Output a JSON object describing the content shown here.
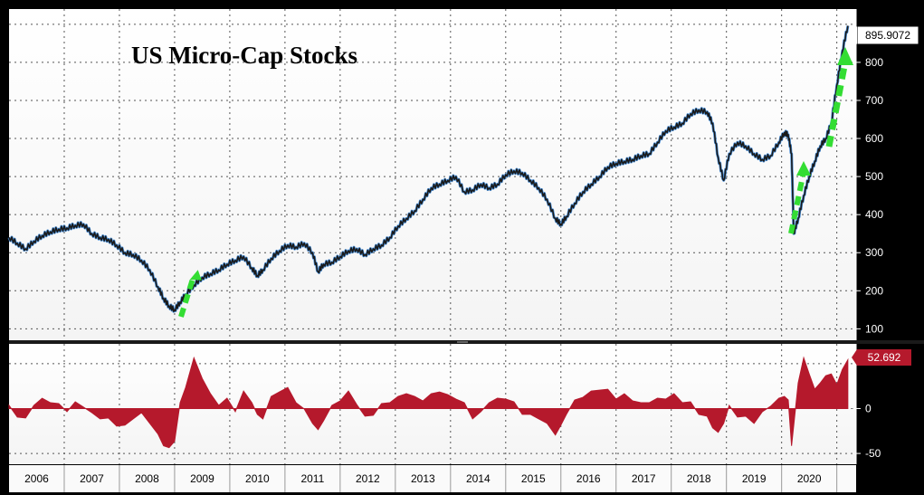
{
  "chart_data": [
    {
      "type": "line",
      "title": "US Micro-Cap Stocks",
      "ylim": [
        70,
        940
      ],
      "xlim": [
        2006.0,
        2021.35
      ],
      "yticks": [
        100,
        200,
        300,
        400,
        500,
        600,
        700,
        800
      ],
      "last_value_label": "895.9072",
      "grid": true,
      "series": [
        {
          "color": "#1a1a1a",
          "highlight_color": "#4a90d9",
          "x": [
            2006.0,
            2006.15,
            2006.3,
            2006.45,
            2006.6,
            2006.75,
            2006.9,
            2007.05,
            2007.2,
            2007.35,
            2007.5,
            2007.65,
            2007.8,
            2007.95,
            2008.1,
            2008.25,
            2008.4,
            2008.55,
            2008.7,
            2008.8,
            2008.9,
            2009.0,
            2009.1,
            2009.2,
            2009.35,
            2009.5,
            2009.65,
            2009.8,
            2009.95,
            2010.1,
            2010.25,
            2010.4,
            2010.5,
            2010.6,
            2010.75,
            2010.9,
            2011.05,
            2011.2,
            2011.35,
            2011.5,
            2011.6,
            2011.7,
            2011.85,
            2012.0,
            2012.15,
            2012.3,
            2012.45,
            2012.6,
            2012.75,
            2012.9,
            2013.05,
            2013.2,
            2013.35,
            2013.5,
            2013.65,
            2013.8,
            2013.95,
            2014.1,
            2014.25,
            2014.4,
            2014.55,
            2014.7,
            2014.85,
            2015.0,
            2015.15,
            2015.3,
            2015.45,
            2015.6,
            2015.75,
            2015.9,
            2016.0,
            2016.1,
            2016.25,
            2016.4,
            2016.55,
            2016.7,
            2016.85,
            2017.0,
            2017.15,
            2017.3,
            2017.45,
            2017.6,
            2017.75,
            2017.9,
            2018.05,
            2018.2,
            2018.35,
            2018.5,
            2018.65,
            2018.75,
            2018.85,
            2018.95,
            2019.05,
            2019.2,
            2019.35,
            2019.5,
            2019.65,
            2019.8,
            2019.95,
            2020.05,
            2020.12,
            2020.18,
            2020.22,
            2020.3,
            2020.4,
            2020.5,
            2020.6,
            2020.7,
            2020.8,
            2020.9,
            2021.0,
            2021.1,
            2021.2
          ],
          "values": [
            340,
            325,
            310,
            330,
            345,
            355,
            362,
            365,
            372,
            375,
            350,
            340,
            335,
            320,
            300,
            295,
            280,
            255,
            210,
            180,
            160,
            150,
            170,
            190,
            215,
            235,
            245,
            255,
            270,
            280,
            290,
            260,
            240,
            255,
            285,
            305,
            320,
            315,
            325,
            300,
            250,
            270,
            275,
            290,
            305,
            310,
            295,
            310,
            320,
            340,
            370,
            390,
            410,
            440,
            470,
            480,
            490,
            500,
            460,
            465,
            480,
            470,
            480,
            505,
            515,
            510,
            490,
            470,
            440,
            390,
            375,
            395,
            430,
            460,
            480,
            500,
            525,
            535,
            540,
            545,
            555,
            560,
            590,
            620,
            630,
            640,
            665,
            675,
            670,
            640,
            550,
            490,
            560,
            590,
            580,
            560,
            545,
            555,
            590,
            615,
            610,
            560,
            350,
            390,
            450,
            500,
            540,
            580,
            600,
            640,
            740,
            830,
            896
          ]
        }
      ]
    },
    {
      "type": "area",
      "ylim": [
        -62,
        72
      ],
      "xlim": [
        2006.0,
        2021.35
      ],
      "yticks": [
        -50,
        0
      ],
      "last_value_label": "52.692",
      "color": "#b5192c",
      "grid": true,
      "x_tick_labels": [
        "2006",
        "2007",
        "2008",
        "2009",
        "2010",
        "2011",
        "2012",
        "2013",
        "2014",
        "2015",
        "2016",
        "2017",
        "2018",
        "2019",
        "2020"
      ],
      "x": [
        2006.0,
        2006.15,
        2006.3,
        2006.45,
        2006.6,
        2006.75,
        2006.9,
        2007.05,
        2007.2,
        2007.35,
        2007.5,
        2007.65,
        2007.8,
        2007.95,
        2008.1,
        2008.25,
        2008.4,
        2008.55,
        2008.7,
        2008.8,
        2008.9,
        2009.0,
        2009.1,
        2009.2,
        2009.35,
        2009.5,
        2009.65,
        2009.8,
        2009.95,
        2010.1,
        2010.25,
        2010.4,
        2010.5,
        2010.6,
        2010.75,
        2010.9,
        2011.05,
        2011.2,
        2011.35,
        2011.5,
        2011.6,
        2011.7,
        2011.85,
        2012.0,
        2012.15,
        2012.3,
        2012.45,
        2012.6,
        2012.75,
        2012.9,
        2013.05,
        2013.2,
        2013.35,
        2013.5,
        2013.65,
        2013.8,
        2013.95,
        2014.1,
        2014.25,
        2014.4,
        2014.55,
        2014.7,
        2014.85,
        2015.0,
        2015.15,
        2015.3,
        2015.45,
        2015.6,
        2015.75,
        2015.9,
        2016.0,
        2016.1,
        2016.25,
        2016.4,
        2016.55,
        2016.7,
        2016.85,
        2017.0,
        2017.15,
        2017.3,
        2017.45,
        2017.6,
        2017.75,
        2017.9,
        2018.05,
        2018.2,
        2018.35,
        2018.5,
        2018.65,
        2018.75,
        2018.85,
        2018.95,
        2019.05,
        2019.2,
        2019.35,
        2019.5,
        2019.65,
        2019.8,
        2019.95,
        2020.05,
        2020.12,
        2020.18,
        2020.22,
        2020.3,
        2020.4,
        2020.5,
        2020.6,
        2020.7,
        2020.8,
        2020.9,
        2021.0,
        2021.1,
        2021.2
      ],
      "values": [
        2,
        -8,
        -12,
        5,
        10,
        8,
        4,
        -2,
        6,
        3,
        -6,
        -10,
        -12,
        -18,
        -20,
        -10,
        -6,
        -15,
        -30,
        -40,
        -45,
        -35,
        5,
        25,
        55,
        35,
        15,
        5,
        10,
        -2,
        18,
        8,
        -8,
        -10,
        12,
        20,
        22,
        8,
        -2,
        -15,
        -25,
        -12,
        2,
        10,
        18,
        6,
        -10,
        -6,
        4,
        8,
        12,
        18,
        12,
        10,
        15,
        20,
        14,
        12,
        5,
        -10,
        -5,
        8,
        10,
        12,
        6,
        -5,
        -8,
        -10,
        -18,
        -28,
        -20,
        -5,
        8,
        14,
        18,
        22,
        20,
        12,
        15,
        10,
        5,
        8,
        10,
        12,
        15,
        8,
        6,
        -5,
        -10,
        -20,
        -28,
        -15,
        2,
        -8,
        -10,
        -15,
        -5,
        4,
        10,
        15,
        8,
        -40,
        -20,
        30,
        55,
        40,
        20,
        30,
        35,
        40,
        25,
        45,
        52.7
      ]
    }
  ],
  "annotations": {
    "arrow_color": "#33dd33"
  }
}
